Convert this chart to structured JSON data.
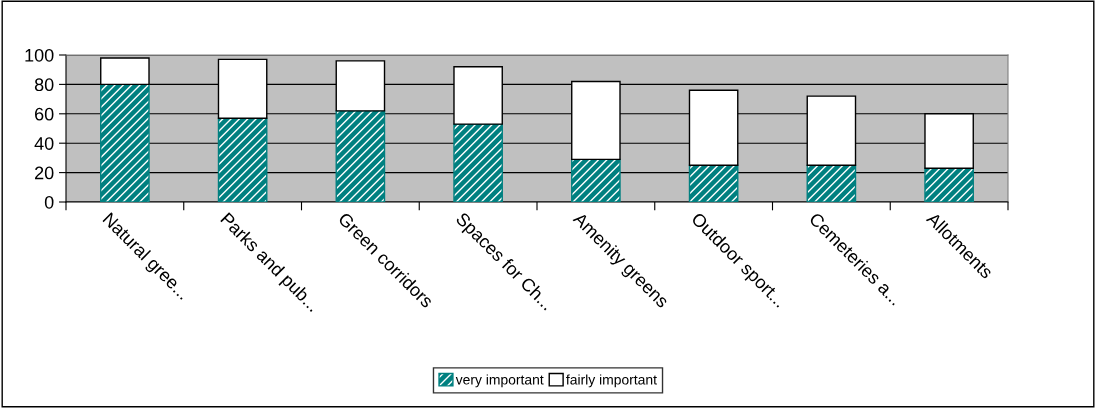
{
  "chart_data": {
    "type": "bar",
    "stacked": true,
    "categories": [
      "Natural gree...",
      "Parks and pub...",
      "Green corridors",
      "Spaces for Ch...",
      "Amenity greens",
      "Outdoor sport...",
      "Cemeteries a...",
      "Allotments"
    ],
    "series": [
      {
        "name": "very important",
        "color": "#008080",
        "values": [
          80,
          57,
          62,
          53,
          29,
          25,
          25,
          23
        ]
      },
      {
        "name": "fairly important",
        "color": "#ffffff",
        "values": [
          18,
          40,
          34,
          39,
          53,
          51,
          47,
          37
        ]
      }
    ],
    "ylim": [
      0,
      100
    ],
    "yticks": [
      0,
      20,
      40,
      60,
      80,
      100
    ],
    "grid": "y",
    "legend": "bottom"
  }
}
